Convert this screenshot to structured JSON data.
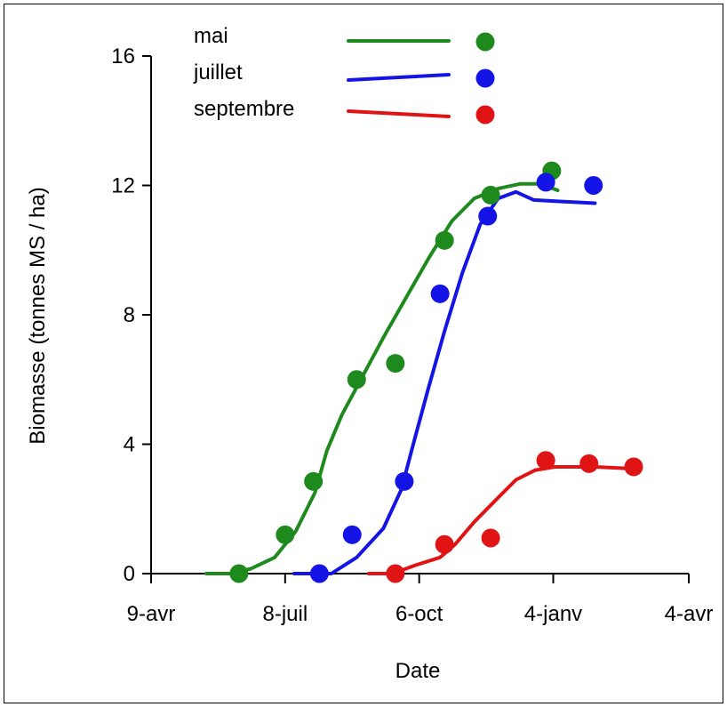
{
  "chart_data": {
    "type": "scatter",
    "title": "",
    "xlabel": "Date",
    "ylabel": "Biomasse (tonnes MS / ha)",
    "xlim": [
      "2007-04-09",
      "2008-04-04"
    ],
    "ylim": [
      0,
      16
    ],
    "x_ticks": [
      {
        "date": "2007-04-09",
        "label": "9-avr"
      },
      {
        "date": "2007-07-08",
        "label": "8-juil"
      },
      {
        "date": "2007-10-06",
        "label": "6-oct"
      },
      {
        "date": "2008-01-04",
        "label": "4-janv"
      },
      {
        "date": "2008-04-04",
        "label": "4-avr"
      }
    ],
    "y_ticks": [
      0,
      4,
      8,
      12,
      16
    ],
    "grid": false,
    "legend_position": "top-center",
    "series": [
      {
        "name": "mai",
        "color": "#1e8a1e",
        "observed": [
          {
            "x": "2007-06-07",
            "y": 0
          },
          {
            "x": "2007-07-08",
            "y": 1.2
          },
          {
            "x": "2007-07-27",
            "y": 2.85
          },
          {
            "x": "2007-08-25",
            "y": 6.0
          },
          {
            "x": "2007-09-20",
            "y": 6.5
          },
          {
            "x": "2007-10-23",
            "y": 10.3
          },
          {
            "x": "2007-11-23",
            "y": 11.7
          },
          {
            "x": "2008-01-03",
            "y": 12.45
          }
        ],
        "simulated": [
          {
            "x": "2007-05-16",
            "y": 0
          },
          {
            "x": "2007-06-01",
            "y": 0
          },
          {
            "x": "2007-06-15",
            "y": 0.15
          },
          {
            "x": "2007-07-01",
            "y": 0.5
          },
          {
            "x": "2007-07-15",
            "y": 1.3
          },
          {
            "x": "2007-07-28",
            "y": 2.5
          },
          {
            "x": "2007-08-05",
            "y": 3.8
          },
          {
            "x": "2007-08-15",
            "y": 4.9
          },
          {
            "x": "2007-08-29",
            "y": 6.1
          },
          {
            "x": "2007-09-12",
            "y": 7.3
          },
          {
            "x": "2007-09-28",
            "y": 8.6
          },
          {
            "x": "2007-10-13",
            "y": 9.8
          },
          {
            "x": "2007-10-28",
            "y": 10.9
          },
          {
            "x": "2007-11-12",
            "y": 11.6
          },
          {
            "x": "2007-11-28",
            "y": 11.9
          },
          {
            "x": "2007-12-13",
            "y": 12.05
          },
          {
            "x": "2007-12-25",
            "y": 12.05
          },
          {
            "x": "2008-01-04",
            "y": 11.9
          },
          {
            "x": "2008-01-07",
            "y": 11.85
          }
        ]
      },
      {
        "name": "juillet",
        "color": "#1414e6",
        "observed": [
          {
            "x": "2007-07-31",
            "y": 0
          },
          {
            "x": "2007-08-22",
            "y": 1.2
          },
          {
            "x": "2007-09-26",
            "y": 2.85
          },
          {
            "x": "2007-10-20",
            "y": 8.65
          },
          {
            "x": "2007-11-21",
            "y": 11.05
          },
          {
            "x": "2007-12-30",
            "y": 12.1
          },
          {
            "x": "2008-01-31",
            "y": 12.0
          }
        ],
        "simulated": [
          {
            "x": "2007-07-14",
            "y": 0
          },
          {
            "x": "2007-08-08",
            "y": 0
          },
          {
            "x": "2007-08-25",
            "y": 0.5
          },
          {
            "x": "2007-09-12",
            "y": 1.4
          },
          {
            "x": "2007-09-24",
            "y": 2.6
          },
          {
            "x": "2007-10-02",
            "y": 4.0
          },
          {
            "x": "2007-10-12",
            "y": 5.7
          },
          {
            "x": "2007-10-23",
            "y": 7.5
          },
          {
            "x": "2007-11-04",
            "y": 9.3
          },
          {
            "x": "2007-11-16",
            "y": 10.8
          },
          {
            "x": "2007-11-28",
            "y": 11.6
          },
          {
            "x": "2007-12-10",
            "y": 11.8
          },
          {
            "x": "2007-12-22",
            "y": 11.55
          },
          {
            "x": "2008-01-11",
            "y": 11.5
          },
          {
            "x": "2008-02-01",
            "y": 11.45
          }
        ]
      },
      {
        "name": "septembre",
        "color": "#e01414",
        "observed": [
          {
            "x": "2007-09-20",
            "y": 0
          },
          {
            "x": "2007-10-23",
            "y": 0.9
          },
          {
            "x": "2007-11-23",
            "y": 1.1
          },
          {
            "x": "2007-12-30",
            "y": 3.5
          },
          {
            "x": "2008-01-28",
            "y": 3.4
          },
          {
            "x": "2008-02-27",
            "y": 3.3
          }
        ],
        "simulated": [
          {
            "x": "2007-09-02",
            "y": 0
          },
          {
            "x": "2007-09-18",
            "y": 0
          },
          {
            "x": "2007-10-03",
            "y": 0.25
          },
          {
            "x": "2007-10-20",
            "y": 0.5
          },
          {
            "x": "2007-10-30",
            "y": 0.9
          },
          {
            "x": "2007-11-12",
            "y": 1.6
          },
          {
            "x": "2007-11-27",
            "y": 2.3
          },
          {
            "x": "2007-12-10",
            "y": 2.9
          },
          {
            "x": "2007-12-23",
            "y": 3.2
          },
          {
            "x": "2008-01-05",
            "y": 3.3
          },
          {
            "x": "2008-02-01",
            "y": 3.3
          },
          {
            "x": "2008-02-23",
            "y": 3.25
          }
        ]
      }
    ]
  }
}
